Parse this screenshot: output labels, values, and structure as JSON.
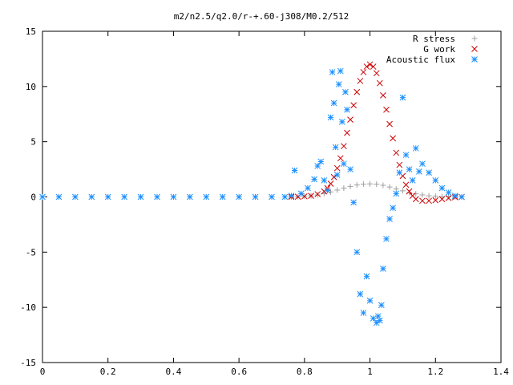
{
  "chart_data": {
    "type": "scatter",
    "title": "m2/n2.5/q2.0/r-+.60-j308/M0.2/512",
    "xlabel": "",
    "ylabel": "",
    "xlim": [
      0,
      1.4
    ],
    "ylim": [
      -15,
      15
    ],
    "xticks": [
      "0",
      "0.2",
      "0.4",
      "0.6",
      "0.8",
      "1",
      "1.2",
      "1.4"
    ],
    "yticks": [
      "15",
      "10",
      "5",
      "0",
      "-5",
      "-10",
      "-15"
    ],
    "xtick_values": [
      0,
      0.2,
      0.4,
      0.6,
      0.8,
      1.0,
      1.2,
      1.4
    ],
    "ytick_values": [
      15,
      10,
      5,
      0,
      -5,
      -10,
      -15
    ],
    "grid": false,
    "legend_position": "top-right",
    "series": [
      {
        "name": "R stress",
        "marker": "plus",
        "color": "#a0a0a0",
        "x": [
          0.76,
          0.78,
          0.8,
          0.82,
          0.84,
          0.86,
          0.88,
          0.9,
          0.92,
          0.94,
          0.96,
          0.98,
          1.0,
          1.02,
          1.04,
          1.06,
          1.08,
          1.1,
          1.12,
          1.14,
          1.16,
          1.18,
          1.2,
          1.22,
          1.24,
          1.26,
          1.28
        ],
        "y": [
          0.0,
          0.02,
          0.05,
          0.1,
          0.18,
          0.3,
          0.45,
          0.62,
          0.8,
          0.95,
          1.08,
          1.15,
          1.18,
          1.15,
          1.05,
          0.9,
          0.72,
          0.55,
          0.4,
          0.28,
          0.18,
          0.1,
          0.06,
          0.03,
          0.01,
          0.0,
          0.0
        ]
      },
      {
        "name": "G work",
        "marker": "cross",
        "color": "#cc0000",
        "x": [
          0.76,
          0.78,
          0.8,
          0.82,
          0.84,
          0.86,
          0.87,
          0.88,
          0.89,
          0.9,
          0.91,
          0.92,
          0.93,
          0.94,
          0.95,
          0.96,
          0.97,
          0.98,
          0.99,
          1.0,
          1.01,
          1.02,
          1.03,
          1.04,
          1.05,
          1.06,
          1.07,
          1.08,
          1.09,
          1.1,
          1.11,
          1.12,
          1.13,
          1.14,
          1.16,
          1.18,
          1.2,
          1.22,
          1.24,
          1.26,
          1.28
        ],
        "y": [
          0.0,
          0.02,
          0.05,
          0.1,
          0.25,
          0.5,
          0.8,
          1.2,
          1.8,
          2.6,
          3.5,
          4.6,
          5.8,
          7.0,
          8.3,
          9.5,
          10.5,
          11.3,
          11.8,
          12.0,
          11.8,
          11.2,
          10.3,
          9.2,
          7.9,
          6.6,
          5.3,
          4.0,
          2.9,
          1.9,
          1.1,
          0.5,
          0.1,
          -0.2,
          -0.35,
          -0.35,
          -0.3,
          -0.2,
          -0.1,
          -0.03,
          0.0
        ]
      },
      {
        "name": "Acoustic flux",
        "marker": "star",
        "color": "#1e90ff",
        "x": [
          0.0,
          0.05,
          0.1,
          0.15,
          0.2,
          0.25,
          0.3,
          0.35,
          0.4,
          0.45,
          0.5,
          0.55,
          0.6,
          0.65,
          0.7,
          0.74,
          0.76,
          0.77,
          0.79,
          0.81,
          0.83,
          0.84,
          0.85,
          0.86,
          0.87,
          0.88,
          0.885,
          0.89,
          0.895,
          0.9,
          0.905,
          0.91,
          0.915,
          0.92,
          0.925,
          0.93,
          0.94,
          0.95,
          0.96,
          0.97,
          0.98,
          0.99,
          1.0,
          1.01,
          1.02,
          1.025,
          1.03,
          1.035,
          1.04,
          1.05,
          1.06,
          1.07,
          1.08,
          1.09,
          1.1,
          1.11,
          1.12,
          1.13,
          1.14,
          1.15,
          1.16,
          1.18,
          1.2,
          1.22,
          1.24,
          1.26,
          1.28
        ],
        "y": [
          0,
          0,
          0,
          0,
          0,
          0,
          0,
          0,
          0,
          0,
          0,
          0,
          0,
          0,
          0,
          0,
          0.1,
          2.4,
          0.3,
          0.8,
          1.6,
          2.8,
          3.2,
          1.5,
          0.6,
          7.2,
          11.3,
          8.5,
          4.5,
          2.0,
          10.2,
          11.4,
          6.8,
          3.0,
          9.5,
          7.9,
          2.5,
          -0.5,
          -5.0,
          -8.8,
          -10.5,
          -7.2,
          -9.4,
          -11.0,
          -11.4,
          -10.8,
          -11.2,
          -9.8,
          -6.5,
          -3.8,
          -2.0,
          -1.0,
          0.3,
          2.2,
          9.0,
          3.8,
          2.5,
          1.5,
          4.4,
          2.3,
          3.0,
          2.2,
          1.5,
          0.8,
          0.4,
          0.1,
          0.0
        ]
      }
    ]
  }
}
